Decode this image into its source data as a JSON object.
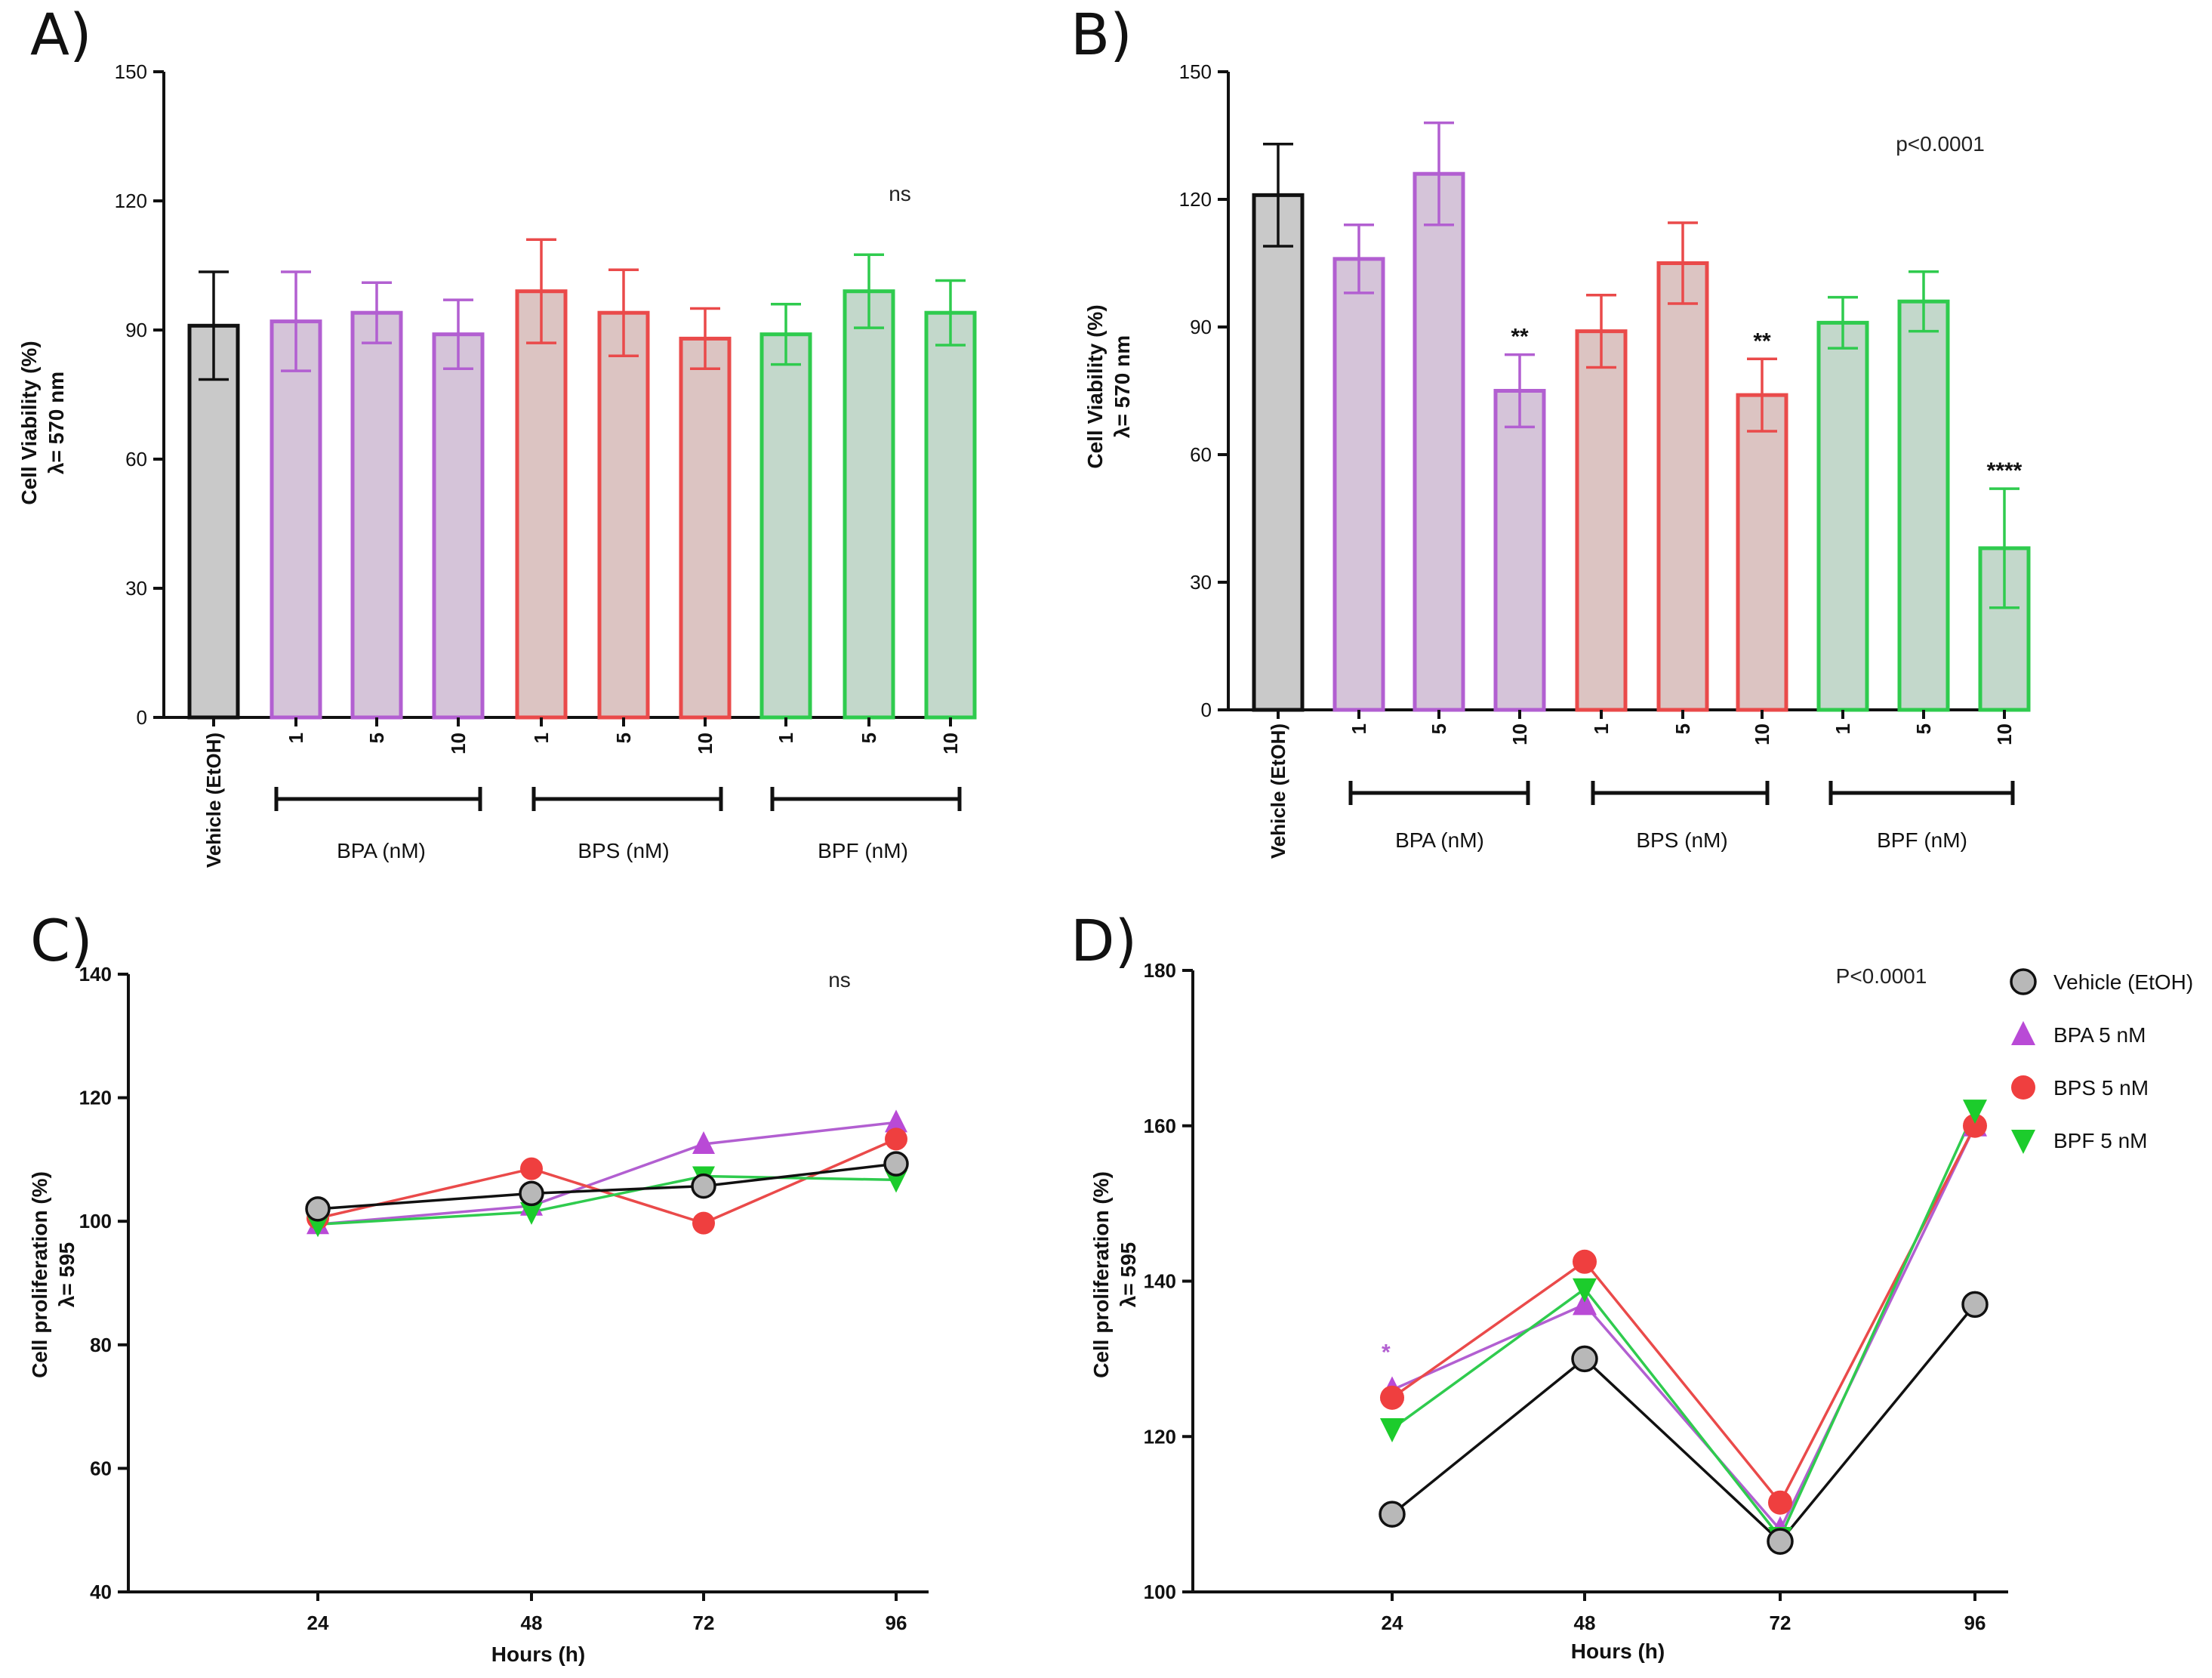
{
  "colors": {
    "vehicle": "#555555",
    "bpa": "#b25fd1",
    "bps": "#ea4a4a",
    "bpf": "#2fcb4e",
    "vehicle_fill": "#c9c9c9",
    "bpa_fill": "#d5c4d9",
    "bps_fill": "#dcc4c2",
    "bpf_fill": "#c3d8cb"
  },
  "chart_data": [
    {
      "panel": "A)",
      "type": "bar",
      "ylabel_line1": "Cell Viability (%)",
      "ylabel_line2": "λ= 570 nm",
      "ylim": [
        0,
        150
      ],
      "yticks": [
        "0",
        "30",
        "60",
        "90",
        "120",
        "150"
      ],
      "categories": [
        "Vehicle (EtOH)",
        "1",
        "5",
        "10",
        "1",
        "5",
        "10",
        "1",
        "5",
        "10"
      ],
      "groups": [
        "vehicle",
        "bpa",
        "bpa",
        "bpa",
        "bps",
        "bps",
        "bps",
        "bpf",
        "bpf",
        "bpf"
      ],
      "values": [
        91,
        92,
        94,
        89,
        99,
        94,
        88,
        89,
        99,
        94
      ],
      "errors": [
        12.5,
        11.5,
        7,
        8,
        12,
        10,
        7,
        7,
        8.5,
        7.5
      ],
      "stars": [
        "",
        "",
        "",
        "",
        "",
        "",
        "",
        "",
        "",
        ""
      ],
      "group_labels": [
        "BPA (nM)",
        "BPS (nM)",
        "BPF (nM)"
      ],
      "annotation": "ns"
    },
    {
      "panel": "B)",
      "type": "bar",
      "ylabel_line1": "Cell Viability (%)",
      "ylabel_line2": "λ= 570 nm",
      "ylim": [
        0,
        150
      ],
      "yticks": [
        "0",
        "30",
        "60",
        "90",
        "120",
        "150"
      ],
      "categories": [
        "Vehicle (EtOH)",
        "1",
        "5",
        "10",
        "1",
        "5",
        "10",
        "1",
        "5",
        "10"
      ],
      "groups": [
        "vehicle",
        "bpa",
        "bpa",
        "bpa",
        "bps",
        "bps",
        "bps",
        "bpf",
        "bpf",
        "bpf"
      ],
      "values": [
        121,
        106,
        126,
        75,
        89,
        105,
        74,
        91,
        96,
        38
      ],
      "errors": [
        12,
        8,
        12,
        8.5,
        8.5,
        9.5,
        8.5,
        6,
        7,
        14
      ],
      "stars": [
        "",
        "",
        "",
        "**",
        "",
        "",
        "**",
        "",
        "",
        "****"
      ],
      "group_labels": [
        "BPA (nM)",
        "BPS (nM)",
        "BPF (nM)"
      ],
      "annotation": "p<0.0001"
    },
    {
      "panel": "C)",
      "type": "line",
      "ylabel_line1": "Cell proliferation (%)",
      "ylabel_line2": "λ= 595",
      "xlabel": "Hours (h)",
      "x": [
        "24",
        "48",
        "72",
        "96"
      ],
      "ylim": [
        40,
        140
      ],
      "yticks": [
        "40",
        "60",
        "80",
        "100",
        "120",
        "140"
      ],
      "series": [
        {
          "name": "Vehicle (EtOH)",
          "key": "vehicle",
          "values": [
            102,
            104.5,
            105.7,
            109.3
          ]
        },
        {
          "name": "BPA 5 nM",
          "key": "bpa",
          "values": [
            99.5,
            102.5,
            112.5,
            116
          ]
        },
        {
          "name": "BPS 5 nM",
          "key": "bps",
          "values": [
            100.5,
            108.5,
            99.7,
            113.3
          ]
        },
        {
          "name": "BPF 5 nM",
          "key": "bpf",
          "values": [
            99.5,
            101.5,
            107.3,
            106.7
          ]
        }
      ],
      "annotation": "ns"
    },
    {
      "panel": "D)",
      "type": "line",
      "ylabel_line1": "Cell proliferation (%)",
      "ylabel_line2": "λ= 595",
      "xlabel": "Hours (h)",
      "x": [
        "24",
        "48",
        "72",
        "96"
      ],
      "ylim": [
        100,
        180
      ],
      "yticks": [
        "100",
        "120",
        "140",
        "160",
        "180"
      ],
      "series": [
        {
          "name": "Vehicle (EtOH)",
          "key": "vehicle",
          "values": [
            110,
            130,
            106.5,
            137
          ]
        },
        {
          "name": "BPA 5 nM",
          "key": "bpa",
          "values": [
            126,
            137,
            108,
            160
          ]
        },
        {
          "name": "BPS 5 nM",
          "key": "bps",
          "values": [
            125,
            142.5,
            111.5,
            160
          ]
        },
        {
          "name": "BPF 5 nM",
          "key": "bpf",
          "values": [
            121,
            139,
            107,
            162
          ]
        }
      ],
      "star": "*",
      "annotation": "P<0.0001",
      "legend": [
        "Vehicle (EtOH)",
        "BPA 5 nM",
        "BPS 5 nM",
        "BPF 5 nM"
      ]
    }
  ]
}
